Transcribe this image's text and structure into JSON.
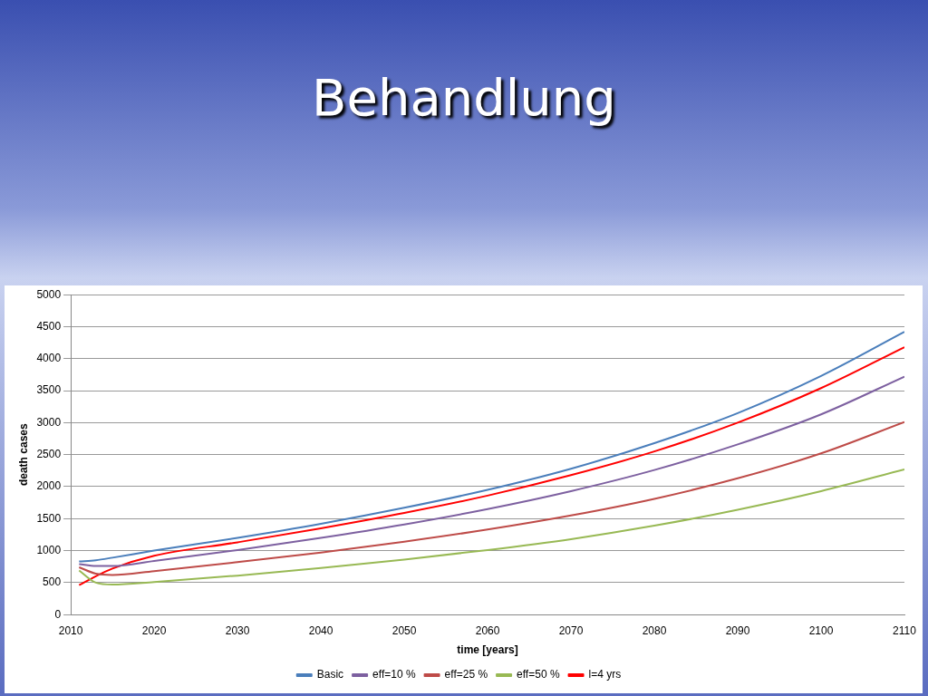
{
  "chart_data": {
    "type": "line",
    "title": "Behandlung",
    "xlabel": "time [years]",
    "ylabel": "death cases",
    "xlim": [
      2010,
      2110
    ],
    "xticks": [
      2010,
      2020,
      2030,
      2040,
      2050,
      2060,
      2070,
      2080,
      2090,
      2100,
      2110
    ],
    "ylim": [
      0,
      5000
    ],
    "yticks": [
      0,
      500,
      1000,
      1500,
      2000,
      2500,
      3000,
      3500,
      4000,
      4500,
      5000
    ],
    "grid": "y",
    "legend": "bottom",
    "marker": "none",
    "x": [
      2011,
      2013,
      2015,
      2020,
      2030,
      2040,
      2050,
      2060,
      2070,
      2080,
      2090,
      2100,
      2110
    ],
    "series": [
      {
        "name": "Basic",
        "color": "#4a7ebb",
        "values": [
          830,
          850,
          890,
          1000,
          1200,
          1420,
          1670,
          1950,
          2280,
          2680,
          3150,
          3730,
          4420
        ]
      },
      {
        "name": "eff=10 %",
        "color": "#7d60a0",
        "values": [
          790,
          760,
          760,
          840,
          1010,
          1200,
          1410,
          1650,
          1930,
          2260,
          2660,
          3130,
          3720
        ]
      },
      {
        "name": "eff=25 %",
        "color": "#be4b48",
        "values": [
          740,
          640,
          620,
          680,
          820,
          970,
          1140,
          1330,
          1550,
          1810,
          2130,
          2520,
          3010
        ]
      },
      {
        "name": "eff=50 %",
        "color": "#98b954",
        "values": [
          690,
          500,
          470,
          510,
          610,
          730,
          860,
          1010,
          1180,
          1390,
          1640,
          1930,
          2270
        ]
      },
      {
        "name": "l=4 yrs",
        "color": "#ff0000",
        "values": [
          460,
          600,
          720,
          920,
          1130,
          1350,
          1590,
          1860,
          2180,
          2550,
          3000,
          3540,
          4180
        ]
      }
    ]
  }
}
